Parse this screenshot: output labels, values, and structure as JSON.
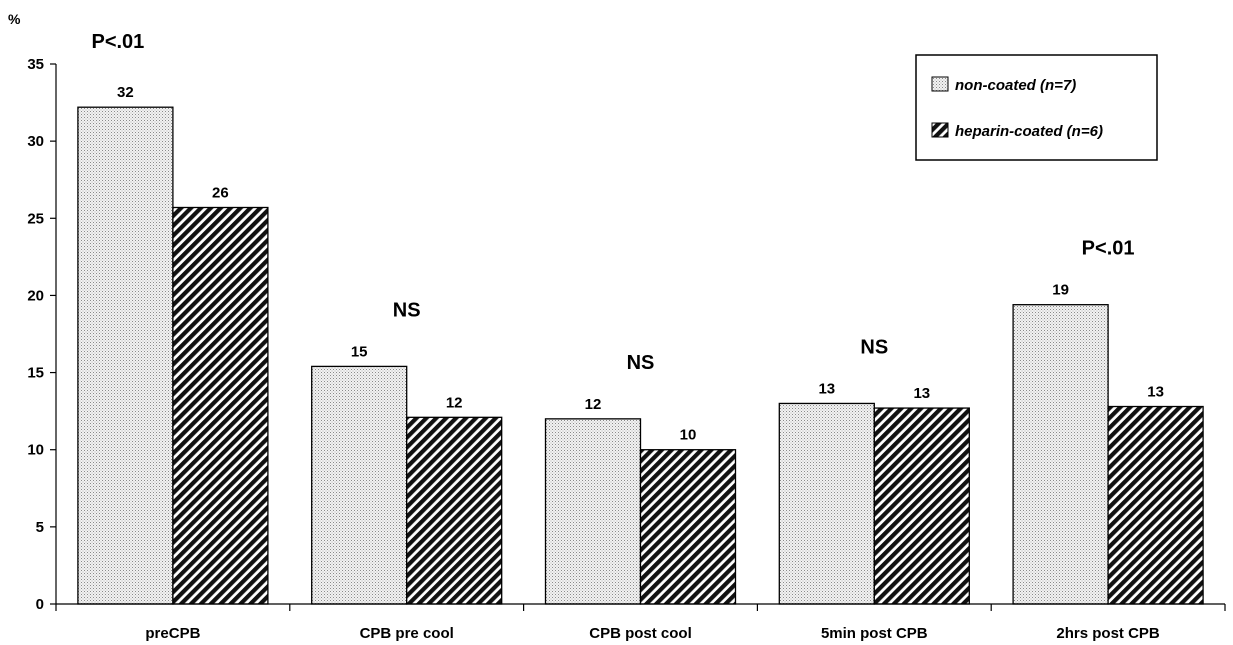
{
  "chart_data": {
    "type": "bar",
    "ylabel": "%",
    "ylim": [
      0,
      35
    ],
    "yticks": [
      0,
      5,
      10,
      15,
      20,
      25,
      30,
      35
    ],
    "categories": [
      "preCPB",
      "CPB pre cool",
      "CPB post cool",
      "5min post CPB",
      "2hrs post CPB"
    ],
    "series": [
      {
        "name": "non-coated (n=7)",
        "values": [
          32.2,
          15.4,
          12.0,
          13.0,
          19.4
        ],
        "labels": [
          "32",
          "15",
          "12",
          "13",
          "19"
        ],
        "pattern": "dotted"
      },
      {
        "name": "heparin-coated (n=6)",
        "values": [
          25.7,
          12.1,
          10.0,
          12.7,
          12.8
        ],
        "labels": [
          "26",
          "12",
          "10",
          "13",
          "13"
        ],
        "pattern": "hatched"
      }
    ],
    "annotations": [
      "P<.01",
      "NS",
      "NS",
      "NS",
      "P<.01"
    ],
    "legend_position": "top-right",
    "grid": false
  }
}
